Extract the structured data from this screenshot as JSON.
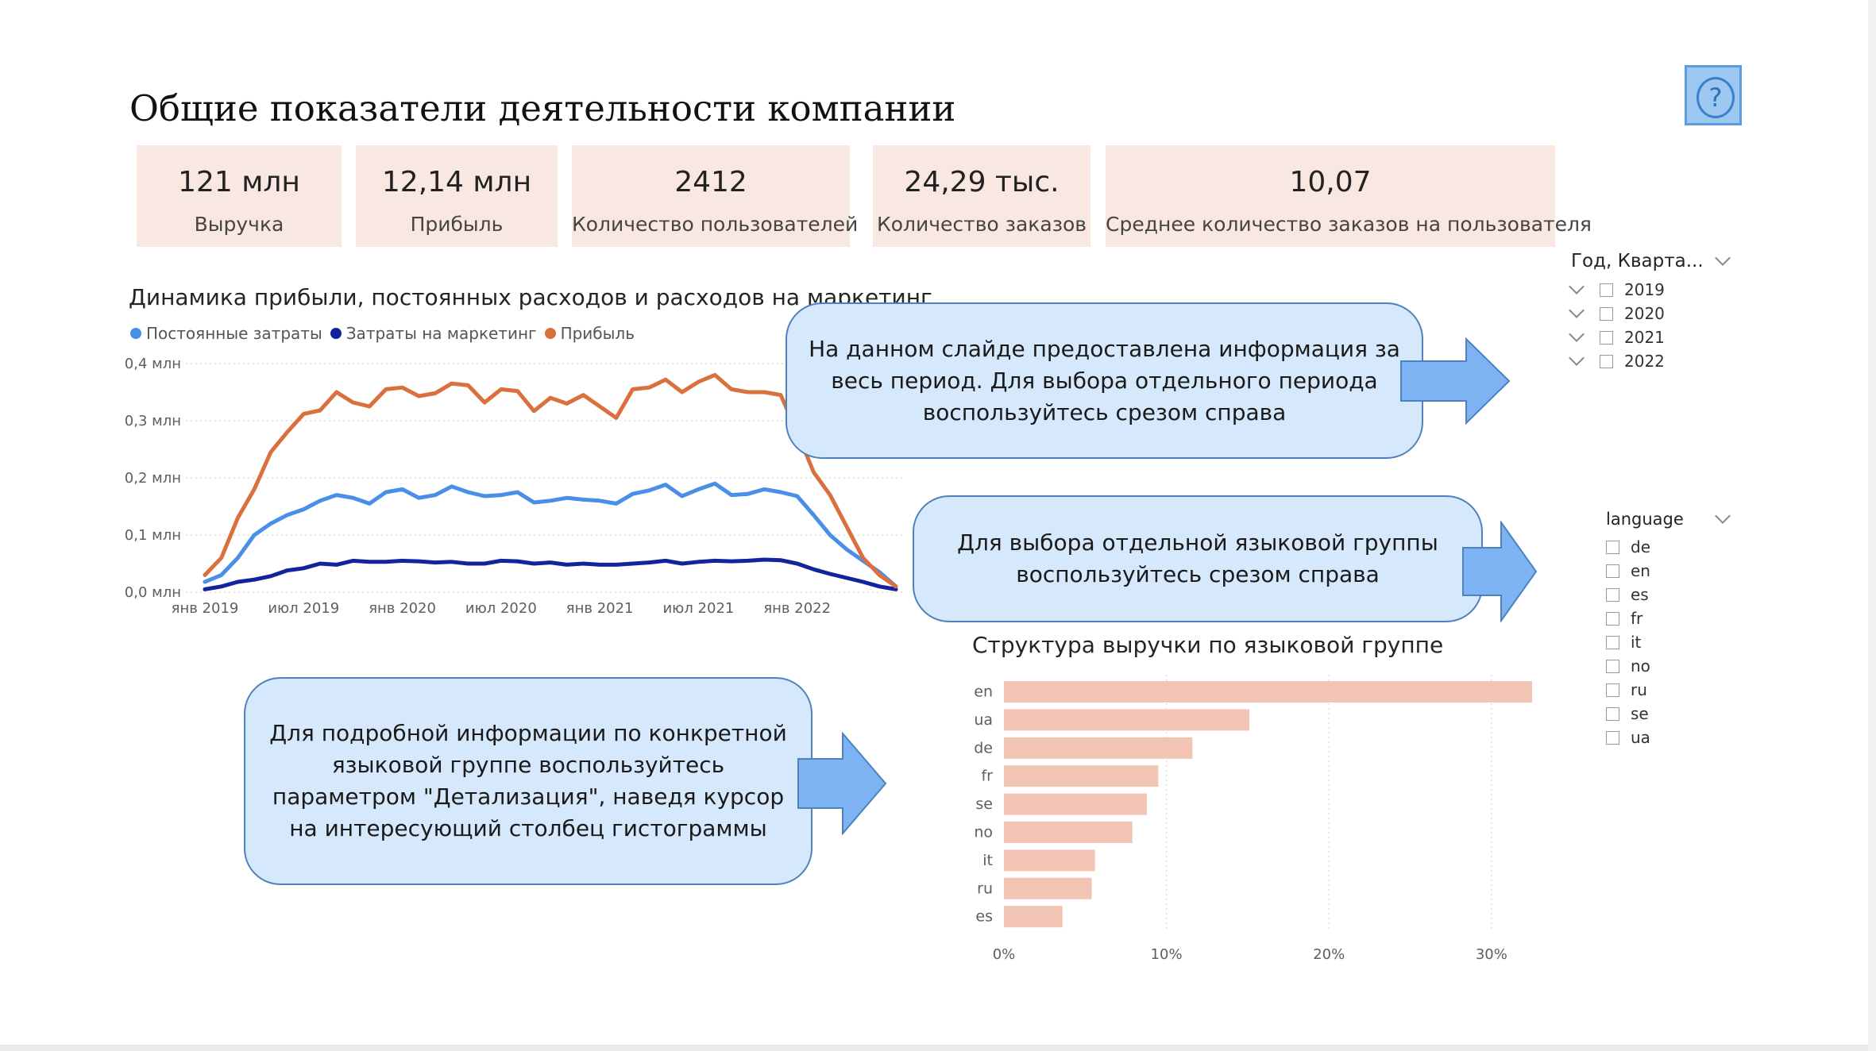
{
  "page": {
    "title": "Общие показатели деятельности компании"
  },
  "help_button": {
    "icon": "question-icon",
    "glyph": "?"
  },
  "kpis": [
    {
      "value": "121 млн",
      "label": "Выручка"
    },
    {
      "value": "12,14 млн",
      "label": "Прибыль"
    },
    {
      "value": "2412",
      "label": "Количество пользователей"
    },
    {
      "value": "24,29 тыс.",
      "label": "Количество заказов"
    },
    {
      "value": "10,07",
      "label": "Среднее количество заказов на пользователя"
    }
  ],
  "line_chart": {
    "title": "Динамика прибыли, постоянных расходов и расходов на маркетинг"
  },
  "bar_chart": {
    "title": "Структура выручки по языковой группе"
  },
  "callouts": {
    "period": "На данном слайде предоставлена информация за весь период. Для выбора отдельного периода воспользуйтесь срезом справа",
    "language": "Для выбора отдельной языковой группы воспользуйтесь срезом справа",
    "drill": "Для подробной информации по конкретной языковой группе воспользуйтесь параметром \"Детализация\", наведя курсор на интересующий столбец гистограммы"
  },
  "slicers": {
    "year": {
      "title": "Год, Кварта...",
      "items": [
        "2019",
        "2020",
        "2021",
        "2022"
      ]
    },
    "language": {
      "title": "language",
      "items": [
        "de",
        "en",
        "es",
        "fr",
        "it",
        "no",
        "ru",
        "se",
        "ua"
      ]
    }
  },
  "colors": {
    "fixed": "#4A8FE7",
    "marketing": "#12239E",
    "profit": "#D9703E",
    "bar": "#F2C4B3",
    "kpi_bg": "#F9E8E2",
    "callout_bg": "#D6E8FB"
  },
  "chart_data": [
    {
      "type": "line",
      "title": "Динамика прибыли, постоянных расходов и расходов на маркетинг",
      "y_ticks": [
        "0,0 млн",
        "0,1 млн",
        "0,2 млн",
        "0,3 млн",
        "0,4 млн"
      ],
      "x_ticks": [
        "янв 2019",
        "июл 2019",
        "янв 2020",
        "июл 2020",
        "янв 2021",
        "июл 2021",
        "янв 2022"
      ],
      "ylim": [
        0,
        0.4
      ],
      "y_unit": "млн",
      "x": [
        "2019-01",
        "2019-02",
        "2019-03",
        "2019-04",
        "2019-05",
        "2019-06",
        "2019-07",
        "2019-08",
        "2019-09",
        "2019-10",
        "2019-11",
        "2019-12",
        "2020-01",
        "2020-02",
        "2020-03",
        "2020-04",
        "2020-05",
        "2020-06",
        "2020-07",
        "2020-08",
        "2020-09",
        "2020-10",
        "2020-11",
        "2020-12",
        "2021-01",
        "2021-02",
        "2021-03",
        "2021-04",
        "2021-05",
        "2021-06",
        "2021-07",
        "2021-08",
        "2021-09",
        "2021-10",
        "2021-11",
        "2021-12",
        "2022-01",
        "2022-02",
        "2022-03",
        "2022-04",
        "2022-05",
        "2022-06",
        "2022-07"
      ],
      "series": [
        {
          "name": "Постоянные затраты",
          "color": "#4A8FE7",
          "values": [
            0.018,
            0.03,
            0.06,
            0.1,
            0.12,
            0.135,
            0.145,
            0.16,
            0.17,
            0.165,
            0.155,
            0.175,
            0.18,
            0.165,
            0.17,
            0.185,
            0.175,
            0.168,
            0.17,
            0.175,
            0.157,
            0.16,
            0.165,
            0.162,
            0.16,
            0.155,
            0.172,
            0.178,
            0.188,
            0.168,
            0.18,
            0.19,
            0.17,
            0.172,
            0.18,
            0.175,
            0.168,
            0.135,
            0.1,
            0.075,
            0.055,
            0.035,
            0.01
          ]
        },
        {
          "name": "Затраты на маркетинг",
          "color": "#12239E",
          "values": [
            0.005,
            0.01,
            0.018,
            0.022,
            0.028,
            0.038,
            0.042,
            0.05,
            0.048,
            0.055,
            0.053,
            0.053,
            0.055,
            0.054,
            0.052,
            0.053,
            0.05,
            0.05,
            0.055,
            0.054,
            0.05,
            0.052,
            0.048,
            0.05,
            0.048,
            0.048,
            0.05,
            0.052,
            0.055,
            0.05,
            0.053,
            0.055,
            0.054,
            0.055,
            0.057,
            0.056,
            0.05,
            0.04,
            0.032,
            0.025,
            0.018,
            0.01,
            0.005
          ]
        },
        {
          "name": "Прибыль",
          "color": "#D9703E",
          "values": [
            0.03,
            0.06,
            0.13,
            0.18,
            0.245,
            0.28,
            0.312,
            0.318,
            0.35,
            0.332,
            0.325,
            0.355,
            0.358,
            0.343,
            0.348,
            0.365,
            0.362,
            0.332,
            0.355,
            0.352,
            0.317,
            0.34,
            0.33,
            0.345,
            0.325,
            0.305,
            0.355,
            0.358,
            0.372,
            0.35,
            0.368,
            0.38,
            0.355,
            0.35,
            0.35,
            0.345,
            0.28,
            0.21,
            0.17,
            0.115,
            0.06,
            0.03,
            0.01
          ]
        }
      ],
      "legend": "top-left"
    },
    {
      "type": "bar",
      "orientation": "horizontal",
      "title": "Структура выручки по языковой группе",
      "categories": [
        "en",
        "ua",
        "de",
        "fr",
        "se",
        "no",
        "it",
        "ru",
        "es"
      ],
      "values": [
        32.5,
        15.1,
        11.6,
        9.5,
        8.8,
        7.9,
        5.6,
        5.4,
        3.6
      ],
      "unit": "%",
      "xlim": [
        0,
        35
      ],
      "x_ticks": [
        "0%",
        "10%",
        "20%",
        "30%"
      ],
      "x_tick_values": [
        0,
        10,
        20,
        30
      ],
      "color": "#F2C4B3"
    }
  ]
}
